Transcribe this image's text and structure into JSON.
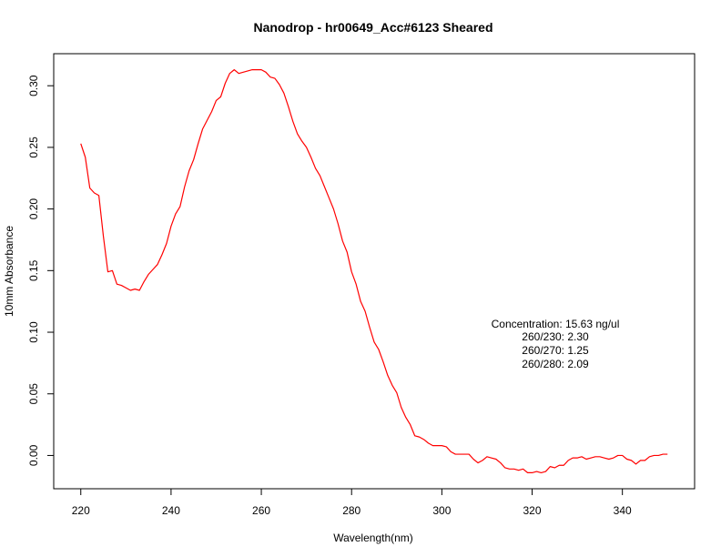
{
  "chart_data": {
    "type": "line",
    "title": "Nanodrop - hr00649_Acc#6123 Sheared",
    "xlabel": "Wavelength(nm)",
    "ylabel": "10mm Absorbance",
    "xlim": [
      214,
      356
    ],
    "ylim": [
      -0.027,
      0.326
    ],
    "x_ticks": [
      220,
      240,
      260,
      280,
      300,
      320,
      340
    ],
    "y_ticks": [
      0.0,
      0.05,
      0.1,
      0.15,
      0.2,
      0.25,
      0.3
    ],
    "y_tick_labels": [
      "0.00",
      "0.05",
      "0.10",
      "0.15",
      "0.20",
      "0.25",
      "0.30"
    ],
    "grid": false,
    "series_color": "#ff0000",
    "x": [
      220,
      221,
      222,
      223,
      224,
      225,
      226,
      227,
      228,
      229,
      230,
      231,
      232,
      233,
      234,
      235,
      236,
      237,
      238,
      239,
      240,
      241,
      242,
      243,
      244,
      245,
      246,
      247,
      248,
      249,
      250,
      251,
      252,
      253,
      254,
      255,
      256,
      257,
      258,
      259,
      260,
      261,
      262,
      263,
      264,
      265,
      266,
      267,
      268,
      269,
      270,
      271,
      272,
      273,
      274,
      275,
      276,
      277,
      278,
      279,
      280,
      281,
      282,
      283,
      284,
      285,
      286,
      287,
      288,
      289,
      290,
      291,
      292,
      293,
      294,
      295,
      296,
      297,
      298,
      299,
      300,
      301,
      302,
      303,
      304,
      305,
      306,
      307,
      308,
      309,
      310,
      311,
      312,
      313,
      314,
      315,
      316,
      317,
      318,
      319,
      320,
      321,
      322,
      323,
      324,
      325,
      326,
      327,
      328,
      329,
      330,
      331,
      332,
      333,
      334,
      335,
      336,
      337,
      338,
      339,
      340,
      341,
      342,
      343,
      344,
      345,
      346,
      347,
      348,
      349,
      350
    ],
    "y": [
      0.253,
      0.242,
      0.217,
      0.213,
      0.211,
      0.178,
      0.149,
      0.15,
      0.139,
      0.138,
      0.136,
      0.134,
      0.135,
      0.134,
      0.141,
      0.147,
      0.151,
      0.155,
      0.163,
      0.172,
      0.186,
      0.196,
      0.202,
      0.218,
      0.231,
      0.24,
      0.253,
      0.265,
      0.272,
      0.279,
      0.288,
      0.291,
      0.302,
      0.31,
      0.313,
      0.31,
      0.311,
      0.312,
      0.313,
      0.313,
      0.313,
      0.311,
      0.307,
      0.306,
      0.301,
      0.294,
      0.283,
      0.271,
      0.261,
      0.255,
      0.25,
      0.242,
      0.233,
      0.227,
      0.218,
      0.209,
      0.2,
      0.188,
      0.174,
      0.165,
      0.149,
      0.139,
      0.125,
      0.117,
      0.104,
      0.092,
      0.086,
      0.076,
      0.065,
      0.057,
      0.051,
      0.039,
      0.031,
      0.025,
      0.016,
      0.015,
      0.013,
      0.01,
      0.008,
      0.008,
      0.008,
      0.007,
      0.003,
      0.001,
      0.001,
      0.001,
      0.001,
      -0.003,
      -0.006,
      -0.004,
      -0.001,
      -0.002,
      -0.003,
      -0.006,
      -0.01,
      -0.011,
      -0.011,
      -0.012,
      -0.011,
      -0.014,
      -0.014,
      -0.013,
      -0.014,
      -0.013,
      -0.009,
      -0.01,
      -0.008,
      -0.008,
      -0.004,
      -0.002,
      -0.002,
      -0.001,
      -0.003,
      -0.002,
      -0.001,
      -0.001,
      -0.002,
      -0.003,
      -0.002,
      0.0,
      0.0,
      -0.003,
      -0.004,
      -0.007,
      -0.004,
      -0.004,
      -0.001,
      0.0,
      0.0,
      0.001,
      0.001
    ],
    "annotations": [
      "Concentration: 15.63 ng/ul",
      "260/230: 2.30",
      "260/270: 1.25",
      "260/280: 2.09"
    ]
  }
}
